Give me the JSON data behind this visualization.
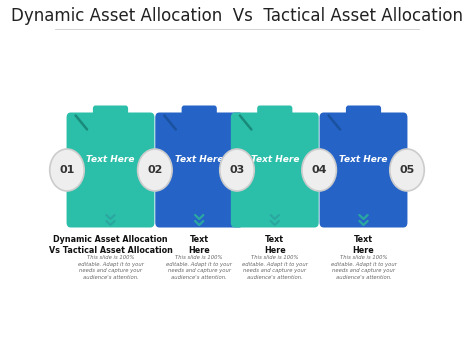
{
  "title": "Dynamic Asset Allocation  Vs  Tactical Asset Allocation",
  "title_fontsize": 12,
  "background_color": "#ffffff",
  "colors": [
    "#2bbfaa",
    "#2563c7",
    "#2bbfaa",
    "#2563c7"
  ],
  "num_labels": [
    "01",
    "02",
    "03",
    "04",
    "05"
  ],
  "header_labels": [
    "Text Here",
    "Text Here",
    "Text Here",
    "Text Here"
  ],
  "bottom_titles": [
    "Dynamic Asset Allocation\nVs Tactical Asset Allocation",
    "Text\nHere",
    "Text\nHere",
    "Text\nHere"
  ],
  "body_text": "This slide is 100%\neditable. Adapt it to your\nneeds and capture your\naudience's attention.",
  "arrow_color": "#2aa8a0",
  "circle_color": "#eeeeee",
  "circle_edge": "#cccccc",
  "fold_color": "#1a8a7a",
  "fold_color2": "#1a52a0"
}
